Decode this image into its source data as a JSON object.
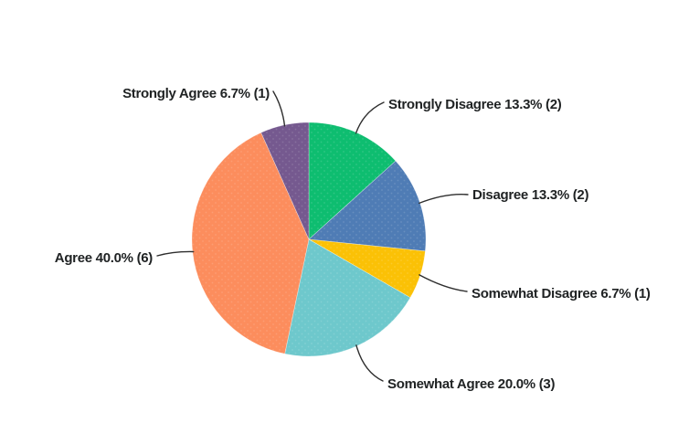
{
  "background_color": "#ffffff",
  "text_color": "#1f2223",
  "leader_line_color": "#2e2e2e",
  "chart_data": {
    "type": "pie",
    "title": "",
    "legend_position": "none",
    "labels_style": "outside-callout",
    "start_angle_deg": 0,
    "direction": "clockwise",
    "slices": [
      {
        "label": "Strongly Disagree",
        "percent": 13.3,
        "count": 2,
        "color": "#0ebd70",
        "label_text": "Strongly Disagree 13.3% (2)"
      },
      {
        "label": "Disagree",
        "percent": 13.3,
        "count": 2,
        "color": "#4f7cb5",
        "label_text": "Disagree 13.3% (2)"
      },
      {
        "label": "Somewhat Disagree",
        "percent": 6.7,
        "count": 1,
        "color": "#fbc106",
        "label_text": "Somewhat Disagree 6.7% (1)"
      },
      {
        "label": "Somewhat Agree",
        "percent": 20.0,
        "count": 3,
        "color": "#6ec8cc",
        "label_text": "Somewhat Agree 20.0% (3)"
      },
      {
        "label": "Agree",
        "percent": 40.0,
        "count": 6,
        "color": "#fc8d5d",
        "label_text": "Agree 40.0% (6)"
      },
      {
        "label": "Strongly Agree",
        "percent": 6.7,
        "count": 1,
        "color": "#75598f",
        "label_text": "Strongly Agree 6.7% (1)"
      }
    ]
  }
}
